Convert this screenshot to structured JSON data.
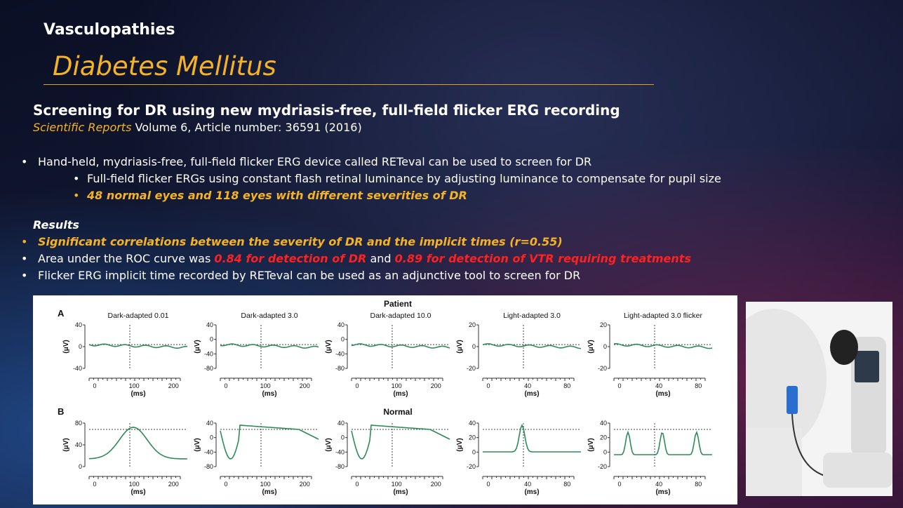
{
  "header": {
    "section": "Vasculopathies",
    "title": "Diabetes Mellitus"
  },
  "study": {
    "title": "Screening for DR using new mydriasis-free, full-field flicker ERG recording",
    "journal": "Scientific Reports",
    "citation": " Volume 6, Article number: 36591 (2016)"
  },
  "bullets": [
    {
      "level": 1,
      "runs": [
        {
          "text": "Hand-held, mydriasis-free, full-field flicker ERG device called RETeval can be used to screen for DR",
          "style": "normal"
        }
      ]
    },
    {
      "level": 2,
      "runs": [
        {
          "text": "Full-field flicker ERGs using constant flash retinal luminance by adjusting luminance to compensate for pupil size",
          "style": "normal"
        }
      ]
    },
    {
      "level": 2,
      "runs": [
        {
          "text": "48 normal eyes and 118 eyes with different severities of DR",
          "style": "yellow"
        }
      ]
    }
  ],
  "results": {
    "heading": "Results",
    "bullets": [
      {
        "level": 1,
        "runs": [
          {
            "text": "Significant correlations between the severity of DR and the implicit times (r=0.55)",
            "style": "yellow"
          }
        ]
      },
      {
        "level": 1,
        "runs": [
          {
            "text": "Area under the ROC curve was ",
            "style": "normal"
          },
          {
            "text": "0.84 for detection of DR",
            "style": "red"
          },
          {
            "text": " and ",
            "style": "normal"
          },
          {
            "text": "0.89 for detection of VTR requiring treatments",
            "style": "red"
          }
        ]
      },
      {
        "level": 1,
        "runs": [
          {
            "text": "Flicker ERG implicit time recorded by RETeval can be used as an adjunctive tool to screen for DR",
            "style": "normal"
          }
        ]
      }
    ]
  },
  "figure": {
    "y_label": "(μV)",
    "x_label": "(ms)",
    "rows": [
      {
        "label": "A",
        "heading": "Patient",
        "panels": [
          {
            "title": "Dark-adapted 0.01",
            "yticks": [
              "40",
              "0",
              "-40"
            ],
            "xticks": [
              "0",
              "100",
              "200"
            ]
          },
          {
            "title": "Dark-adapted 3.0",
            "yticks": [
              "40",
              "0",
              "-40",
              "-80"
            ],
            "xticks": [
              "0",
              "100",
              "200"
            ]
          },
          {
            "title": "Dark-adapted 10.0",
            "yticks": [
              "40",
              "0",
              "-40",
              "-80"
            ],
            "xticks": [
              "0",
              "100",
              "200"
            ]
          },
          {
            "title": "Light-adapted 3.0",
            "yticks": [
              "20",
              "0",
              "-20"
            ],
            "xticks": [
              "0",
              "40",
              "80"
            ]
          },
          {
            "title": "Light-adapted 3.0 flicker",
            "yticks": [
              "20",
              "0",
              "-20"
            ],
            "xticks": [
              "0",
              "40",
              "80"
            ]
          }
        ]
      },
      {
        "label": "B",
        "heading": "Normal",
        "panels": [
          {
            "yticks": [
              "80",
              "40",
              "0"
            ],
            "xticks": [
              "0",
              "100",
              "200"
            ]
          },
          {
            "yticks": [
              "40",
              "0",
              "-40",
              "-80"
            ],
            "xticks": [
              "0",
              "100",
              "200"
            ]
          },
          {
            "yticks": [
              "40",
              "0",
              "-40",
              "-80"
            ],
            "xticks": [
              "0",
              "100",
              "200"
            ]
          },
          {
            "yticks": [
              "40",
              "20",
              "0",
              "-20"
            ],
            "xticks": [
              "0",
              "40",
              "80"
            ]
          },
          {
            "yticks": [
              "40",
              "20",
              "0",
              "-20"
            ],
            "xticks": [
              "0",
              "40",
              "80"
            ]
          }
        ]
      }
    ]
  }
}
